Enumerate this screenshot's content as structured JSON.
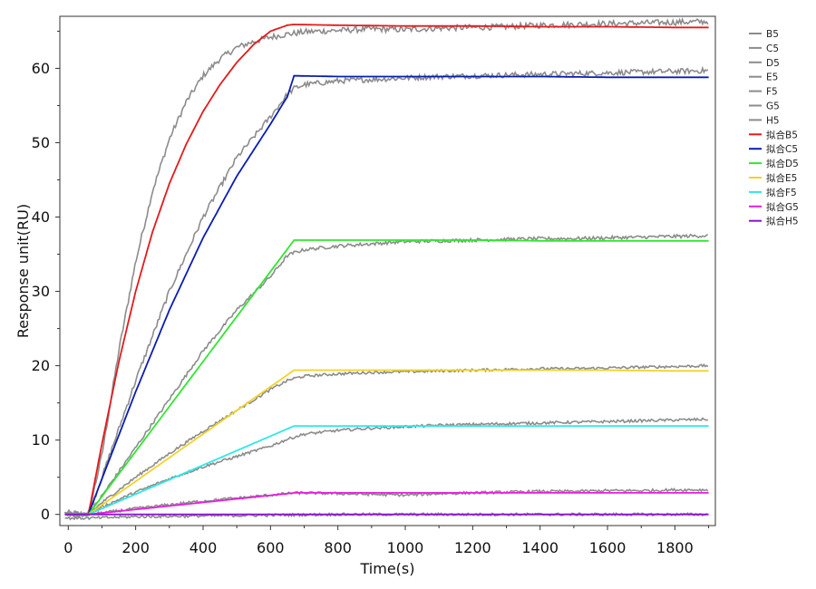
{
  "chart_data": {
    "type": "line",
    "xlabel": "Time(s)",
    "ylabel": "Response unit(RU)",
    "xlim": [
      -25,
      1920
    ],
    "ylim": [
      -1.5,
      67
    ],
    "xticks": [
      0,
      200,
      400,
      600,
      800,
      1000,
      1200,
      1400,
      1600,
      1800
    ],
    "yticks": [
      0,
      10,
      20,
      30,
      40,
      50,
      60
    ],
    "grid": false,
    "legend_position": "right",
    "injection_start": 60,
    "injection_end": 670,
    "series": [
      {
        "name": "B5",
        "kind": "measured",
        "color": "#8c8c8c",
        "x": [
          -10,
          60,
          100,
          150,
          200,
          250,
          300,
          350,
          400,
          450,
          500,
          550,
          600,
          650,
          670,
          700,
          800,
          900,
          1000,
          1100,
          1200,
          1300,
          1400,
          1500,
          1600,
          1700,
          1800,
          1900
        ],
        "y": [
          0.2,
          0,
          8,
          22,
          34,
          43.5,
          50.5,
          55.5,
          59,
          61.3,
          62.8,
          63.6,
          64.2,
          64.6,
          64.7,
          64.9,
          65.1,
          65.3,
          65.2,
          65.4,
          65.5,
          65.6,
          65.8,
          65.9,
          66,
          66.1,
          66.2,
          66.3
        ]
      },
      {
        "name": "C5",
        "kind": "measured",
        "color": "#8c8c8c",
        "x": [
          -10,
          60,
          100,
          200,
          300,
          400,
          500,
          600,
          650,
          670,
          700,
          800,
          900,
          1000,
          1100,
          1200,
          1300,
          1400,
          1500,
          1600,
          1700,
          1800,
          1900
        ],
        "y": [
          0,
          0,
          5,
          18,
          30,
          40,
          48,
          53.5,
          56.5,
          57.3,
          57.8,
          58.3,
          58.5,
          58.7,
          58.9,
          59,
          59.1,
          59.2,
          59.3,
          59.4,
          59.5,
          59.6,
          59.7
        ]
      },
      {
        "name": "D5",
        "kind": "measured",
        "color": "#8c8c8c",
        "x": [
          -10,
          60,
          100,
          200,
          300,
          400,
          500,
          600,
          650,
          670,
          700,
          800,
          900,
          1000,
          1100,
          1200,
          1300,
          1400,
          1500,
          1600,
          1700,
          1800,
          1900
        ],
        "y": [
          0,
          0,
          2.5,
          9,
          15.5,
          22,
          27.5,
          32,
          34.8,
          35.2,
          35.6,
          36.1,
          36.4,
          36.7,
          36.8,
          36.9,
          37,
          37.1,
          37.1,
          37.2,
          37.3,
          37.4,
          37.5
        ]
      },
      {
        "name": "E5",
        "kind": "measured",
        "color": "#8c8c8c",
        "x": [
          -10,
          60,
          100,
          200,
          300,
          400,
          500,
          600,
          650,
          670,
          700,
          800,
          900,
          1000,
          1100,
          1200,
          1300,
          1400,
          1500,
          1600,
          1700,
          1800,
          1900
        ],
        "y": [
          0,
          0,
          1.6,
          5,
          8.2,
          11.2,
          14,
          16.8,
          18,
          18.3,
          18.6,
          18.9,
          19.1,
          19.2,
          19.3,
          19.4,
          19.5,
          19.6,
          19.6,
          19.7,
          19.8,
          19.9,
          20
        ]
      },
      {
        "name": "F5",
        "kind": "measured",
        "color": "#8c8c8c",
        "x": [
          -10,
          60,
          100,
          200,
          300,
          400,
          500,
          600,
          650,
          670,
          700,
          800,
          900,
          1000,
          1100,
          1200,
          1300,
          1400,
          1500,
          1600,
          1700,
          1800,
          1900
        ],
        "y": [
          0,
          0,
          1,
          3,
          4.8,
          6.4,
          7.8,
          9.2,
          10.1,
          10.4,
          10.8,
          11.3,
          11.6,
          11.8,
          12,
          12.1,
          12.2,
          12.3,
          12.4,
          12.5,
          12.6,
          12.7,
          12.8
        ]
      },
      {
        "name": "G5",
        "kind": "measured",
        "color": "#8c8c8c",
        "x": [
          -10,
          60,
          100,
          200,
          300,
          400,
          500,
          600,
          650,
          670,
          700,
          800,
          900,
          1000,
          1100,
          1200,
          1300,
          1400,
          1500,
          1600,
          1700,
          1800,
          1900
        ],
        "y": [
          0,
          0,
          0.2,
          0.8,
          1.3,
          1.8,
          2.2,
          2.6,
          2.8,
          2.9,
          2.9,
          2.8,
          2.7,
          2.6,
          2.8,
          2.9,
          3,
          3.1,
          3.1,
          3.2,
          3.2,
          3.3,
          3.3
        ]
      },
      {
        "name": "H5",
        "kind": "measured",
        "color": "#8c8c8c",
        "x": [
          -10,
          60,
          200,
          400,
          600,
          800,
          1000,
          1200,
          1400,
          1600,
          1800,
          1900
        ],
        "y": [
          -0.5,
          -0.5,
          -0.3,
          -0.2,
          -0.1,
          0,
          0,
          0,
          0,
          0,
          0,
          0
        ]
      },
      {
        "name": "拟合B5",
        "kind": "fit",
        "color": "#e31a1c",
        "x": [
          -10,
          60,
          100,
          150,
          200,
          250,
          300,
          350,
          400,
          450,
          500,
          550,
          600,
          650,
          670,
          800,
          1000,
          1200,
          1400,
          1600,
          1800,
          1900
        ],
        "y": [
          0,
          0,
          9.5,
          20.5,
          30,
          38,
          44.5,
          49.8,
          54.2,
          57.8,
          60.8,
          63.2,
          65,
          65.8,
          65.9,
          65.8,
          65.7,
          65.7,
          65.6,
          65.6,
          65.5,
          65.5
        ]
      },
      {
        "name": "拟合C5",
        "kind": "fit",
        "color": "#0a1cb4",
        "x": [
          -10,
          60,
          100,
          200,
          300,
          400,
          500,
          600,
          650,
          670,
          800,
          1000,
          1200,
          1400,
          1600,
          1800,
          1900
        ],
        "y": [
          0,
          0,
          4.8,
          16.5,
          27.5,
          37.2,
          45.5,
          52.5,
          56.2,
          59,
          58.9,
          58.9,
          58.9,
          58.9,
          58.8,
          58.8,
          58.8
        ]
      },
      {
        "name": "拟合D5",
        "kind": "fit",
        "color": "#2ee82e",
        "x": [
          -10,
          60,
          670,
          800,
          1000,
          1200,
          1400,
          1600,
          1800,
          1900
        ],
        "y": [
          0,
          0,
          36.9,
          36.9,
          36.9,
          36.9,
          36.8,
          36.8,
          36.8,
          36.8
        ]
      },
      {
        "name": "拟合E5",
        "kind": "fit",
        "color": "#f2d22a",
        "x": [
          -10,
          60,
          670,
          800,
          1000,
          1200,
          1400,
          1600,
          1800,
          1900
        ],
        "y": [
          0,
          0,
          19.4,
          19.4,
          19.4,
          19.4,
          19.4,
          19.4,
          19.3,
          19.3
        ]
      },
      {
        "name": "拟合F5",
        "kind": "fit",
        "color": "#2ee8e8",
        "x": [
          -10,
          60,
          670,
          800,
          1000,
          1200,
          1400,
          1600,
          1800,
          1900
        ],
        "y": [
          0,
          0,
          11.9,
          11.9,
          11.9,
          11.9,
          11.9,
          11.9,
          11.9,
          11.9
        ]
      },
      {
        "name": "拟合G5",
        "kind": "fit",
        "color": "#e81ce0",
        "x": [
          -10,
          60,
          670,
          800,
          1000,
          1200,
          1400,
          1600,
          1800,
          1900
        ],
        "y": [
          0,
          0,
          2.9,
          2.9,
          2.9,
          2.9,
          2.9,
          2.9,
          2.9,
          2.9
        ]
      },
      {
        "name": "拟合H5",
        "kind": "fit",
        "color": "#8a12d4",
        "x": [
          -10,
          1900
        ],
        "y": [
          0,
          0
        ]
      }
    ]
  }
}
